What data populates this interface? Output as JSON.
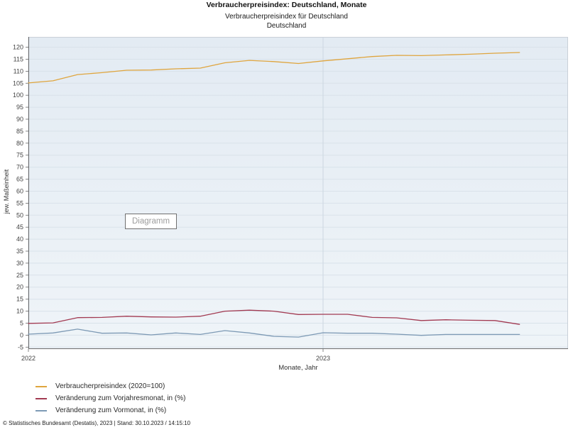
{
  "header": {
    "title": "Verbraucherpreisindex: Deutschland, Monate",
    "subtitle1": "Verbraucherpreisindex für Deutschland",
    "subtitle2": "Deutschland"
  },
  "overlay": {
    "drag_label": "Diagramm"
  },
  "footer": {
    "copyright": "© Statistisches Bundesamt (Destatis), 2023 | Stand: 30.10.2023 / 14:15:10"
  },
  "chart_data": {
    "type": "line",
    "title": "Verbraucherpreisindex: Deutschland, Monate",
    "xlabel": "Monate, Jahr",
    "ylabel": "jew. Maßeinheit",
    "x_months": [
      "2022-01",
      "2022-02",
      "2022-03",
      "2022-04",
      "2022-05",
      "2022-06",
      "2022-07",
      "2022-08",
      "2022-09",
      "2022-10",
      "2022-11",
      "2022-12",
      "2023-01",
      "2023-02",
      "2023-03",
      "2023-04",
      "2023-05",
      "2023-06",
      "2023-07",
      "2023-08",
      "2023-09"
    ],
    "x_year_ticks": [
      {
        "label": "2022",
        "month_index": 0
      },
      {
        "label": "2023",
        "month_index": 12
      }
    ],
    "ylim": [
      -5.8,
      124.3
    ],
    "ytick_min": -5,
    "ytick_max": 120,
    "ytick_step": 5,
    "grid": true,
    "legend_position": "bottom-left",
    "series": [
      {
        "name": "Verbraucherpreisindex (2020=100)",
        "color": "#dfa53e",
        "values": [
          105.1,
          106.0,
          108.6,
          109.4,
          110.4,
          110.5,
          111.0,
          111.3,
          113.5,
          114.5,
          114.0,
          113.2,
          114.3,
          115.2,
          116.1,
          116.6,
          116.5,
          116.8,
          117.1,
          117.5,
          117.8
        ]
      },
      {
        "name": "Veränderung zum Vorjahresmonat, in (%)",
        "color": "#a23a52",
        "values": [
          4.9,
          5.1,
          7.3,
          7.4,
          7.9,
          7.6,
          7.5,
          7.9,
          10.0,
          10.4,
          10.0,
          8.6,
          8.7,
          8.7,
          7.4,
          7.2,
          6.1,
          6.4,
          6.2,
          6.1,
          4.5
        ]
      },
      {
        "name": "Veränderung zum Vormonat, in (%)",
        "color": "#7d9ab5",
        "values": [
          0.4,
          0.9,
          2.5,
          0.8,
          0.9,
          0.1,
          0.9,
          0.3,
          1.9,
          0.9,
          -0.5,
          -0.8,
          1.0,
          0.8,
          0.8,
          0.4,
          -0.1,
          0.3,
          0.3,
          0.3,
          0.3
        ]
      }
    ],
    "colors": {
      "plot_bg_top": "#e3ebf3",
      "plot_bg_bottom": "#eff4f8",
      "grid": "#d9e2ea",
      "year_grid": "#ccd6e0",
      "axis": "#6b6b6b",
      "frame": "#c9d0d8",
      "tick_text": "#444444"
    }
  }
}
